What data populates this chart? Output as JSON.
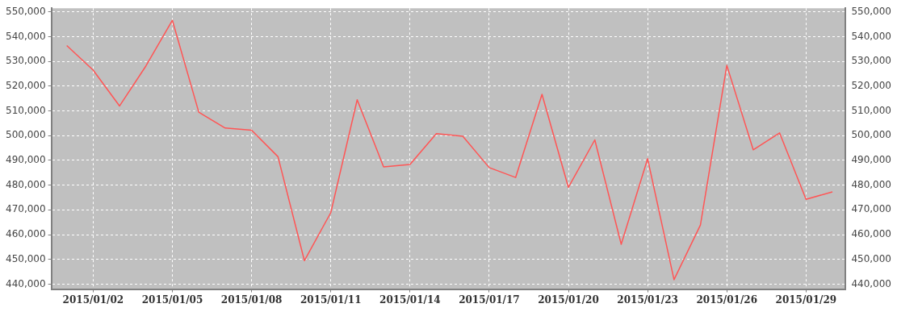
{
  "chart_data": {
    "type": "line",
    "x": [
      "2015-01-01",
      "2015-01-02",
      "2015-01-03",
      "2015-01-04",
      "2015-01-05",
      "2015-01-06",
      "2015-01-07",
      "2015-01-08",
      "2015-01-09",
      "2015-01-10",
      "2015-01-11",
      "2015-01-12",
      "2015-01-13",
      "2015-01-14",
      "2015-01-15",
      "2015-01-16",
      "2015-01-17",
      "2015-01-18",
      "2015-01-19",
      "2015-01-20",
      "2015-01-21",
      "2015-01-22",
      "2015-01-23",
      "2015-01-24",
      "2015-01-25",
      "2015-01-26",
      "2015-01-27",
      "2015-01-28",
      "2015-01-29",
      "2015-01-30"
    ],
    "series": [
      {
        "color": "#ff5555",
        "values": [
          536400,
          526500,
          512000,
          528200,
          546600,
          509500,
          503100,
          502200,
          491500,
          449500,
          468900,
          514500,
          487400,
          488400,
          500800,
          499800,
          487100,
          483100,
          516700,
          479100,
          498300,
          456100,
          490700,
          441800,
          463900,
          528400,
          494300,
          501100,
          474300,
          477300
        ]
      }
    ],
    "xlim": [
      "2014-12-31T10:00",
      "2015-01-30T12:00"
    ],
    "xticks": [
      {
        "value": "2015-01-02",
        "label": "2015/01/02"
      },
      {
        "value": "2015-01-05",
        "label": "2015/01/05"
      },
      {
        "value": "2015-01-08",
        "label": "2015/01/08"
      },
      {
        "value": "2015-01-11",
        "label": "2015/01/11"
      },
      {
        "value": "2015-01-14",
        "label": "2015/01/14"
      },
      {
        "value": "2015-01-17",
        "label": "2015/01/17"
      },
      {
        "value": "2015-01-20",
        "label": "2015/01/20"
      },
      {
        "value": "2015-01-23",
        "label": "2015/01/23"
      },
      {
        "value": "2015-01-26",
        "label": "2015/01/26"
      },
      {
        "value": "2015-01-29",
        "label": "2015/01/29"
      }
    ],
    "ylim": [
      438000,
      551500
    ],
    "yticks": [
      {
        "value": 440000,
        "label": "440,000"
      },
      {
        "value": 450000,
        "label": "450,000"
      },
      {
        "value": 460000,
        "label": "460,000"
      },
      {
        "value": 470000,
        "label": "470,000"
      },
      {
        "value": 480000,
        "label": "480,000"
      },
      {
        "value": 490000,
        "label": "490,000"
      },
      {
        "value": 500000,
        "label": "500,000"
      },
      {
        "value": 510000,
        "label": "510,000"
      },
      {
        "value": 520000,
        "label": "520,000"
      },
      {
        "value": 530000,
        "label": "530,000"
      },
      {
        "value": 540000,
        "label": "540,000"
      },
      {
        "value": 550000,
        "label": "550,000"
      }
    ],
    "y2lim": [
      438000,
      551500
    ],
    "y2ticks": [
      {
        "value": 440000,
        "label": "440,000"
      },
      {
        "value": 450000,
        "label": "450,000"
      },
      {
        "value": 460000,
        "label": "460,000"
      },
      {
        "value": 470000,
        "label": "470,000"
      },
      {
        "value": 480000,
        "label": "480,000"
      },
      {
        "value": 490000,
        "label": "490,000"
      },
      {
        "value": 500000,
        "label": "500,000"
      },
      {
        "value": 510000,
        "label": "510,000"
      },
      {
        "value": 520000,
        "label": "520,000"
      },
      {
        "value": 530000,
        "label": "530,000"
      },
      {
        "value": 540000,
        "label": "540,000"
      },
      {
        "value": 550000,
        "label": "550,000"
      }
    ],
    "grid": true,
    "legend": false,
    "marker": "none",
    "line_style": "solid"
  }
}
